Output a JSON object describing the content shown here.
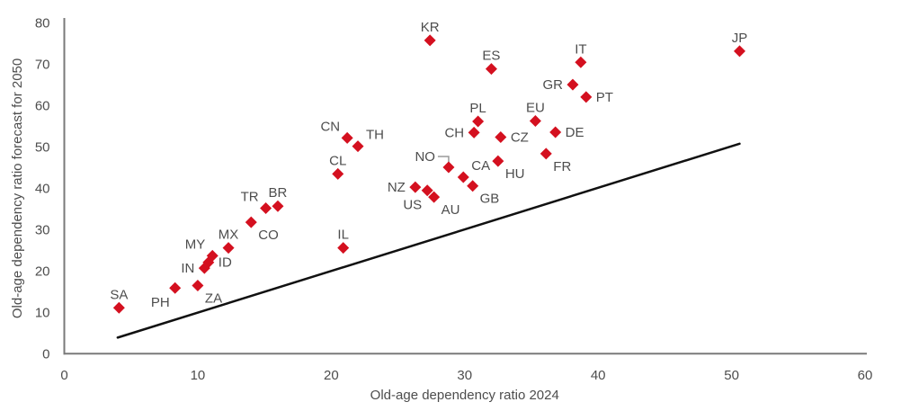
{
  "chart_data": {
    "type": "scatter",
    "title": "",
    "xlabel": "Old-age dependency ratio 2024",
    "ylabel": "Old-age dependency ratio forecast for 2050",
    "xlim": [
      0,
      60
    ],
    "ylim": [
      0,
      80
    ],
    "xticks": [
      0,
      10,
      20,
      30,
      40,
      50,
      60
    ],
    "yticks": [
      0,
      10,
      20,
      30,
      40,
      50,
      60,
      70,
      80
    ],
    "grid": false,
    "legend": false,
    "marker": "diamond",
    "marker_color": "#d4101f",
    "axis_color": "#7a7a7a",
    "text_color": "#4d4d4d",
    "line_color": "#111111",
    "reference_line": {
      "x1": 4.0,
      "y1": 3.9,
      "x2": 50.6,
      "y2": 50.8
    },
    "points": [
      {
        "code": "SA",
        "x": 4.1,
        "y": 11.1,
        "label_pos": "above"
      },
      {
        "code": "PH",
        "x": 8.3,
        "y": 15.9,
        "label_pos": "below-left"
      },
      {
        "code": "ZA",
        "x": 10.0,
        "y": 16.5,
        "label_pos": "below-right"
      },
      {
        "code": "IN",
        "x": 10.5,
        "y": 20.7,
        "label_pos": "left"
      },
      {
        "code": "ID",
        "x": 10.8,
        "y": 22.1,
        "label_pos": "right"
      },
      {
        "code": "MY",
        "x": 11.1,
        "y": 23.7,
        "label_pos": "above-left"
      },
      {
        "code": "MX",
        "x": 12.3,
        "y": 25.6,
        "label_pos": "above"
      },
      {
        "code": "CO",
        "x": 14.0,
        "y": 31.8,
        "label_pos": "below-right"
      },
      {
        "code": "TR",
        "x": 15.1,
        "y": 35.2,
        "label_pos": "above-left"
      },
      {
        "code": "BR",
        "x": 16.0,
        "y": 35.7,
        "label_pos": "above"
      },
      {
        "code": "IL",
        "x": 20.9,
        "y": 25.6,
        "label_pos": "above"
      },
      {
        "code": "CL",
        "x": 20.5,
        "y": 43.5,
        "label_pos": "above"
      },
      {
        "code": "CN",
        "x": 21.2,
        "y": 52.2,
        "label_pos": "above-left"
      },
      {
        "code": "TH",
        "x": 22.0,
        "y": 50.2,
        "label_pos": "above-right"
      },
      {
        "code": "NZ",
        "x": 26.3,
        "y": 40.3,
        "label_pos": "left"
      },
      {
        "code": "US",
        "x": 27.2,
        "y": 39.5,
        "label_pos": "below-left"
      },
      {
        "code": "AU",
        "x": 27.7,
        "y": 37.9,
        "label_pos": "below-right"
      },
      {
        "code": "KR",
        "x": 27.4,
        "y": 75.8,
        "label_pos": "above"
      },
      {
        "code": "NO",
        "x": 28.8,
        "y": 45.1,
        "label_pos": "callout-left",
        "connector": true
      },
      {
        "code": "CA",
        "x": 29.9,
        "y": 42.7,
        "label_pos": "above-right"
      },
      {
        "code": "GB",
        "x": 30.6,
        "y": 40.6,
        "label_pos": "below-right"
      },
      {
        "code": "CH",
        "x": 30.7,
        "y": 53.5,
        "label_pos": "left"
      },
      {
        "code": "PL",
        "x": 31.0,
        "y": 56.2,
        "label_pos": "above"
      },
      {
        "code": "ES",
        "x": 32.0,
        "y": 68.9,
        "label_pos": "above"
      },
      {
        "code": "CZ",
        "x": 32.7,
        "y": 52.4,
        "label_pos": "right"
      },
      {
        "code": "HU",
        "x": 32.5,
        "y": 46.6,
        "label_pos": "below-right"
      },
      {
        "code": "EU",
        "x": 35.3,
        "y": 56.3,
        "label_pos": "above"
      },
      {
        "code": "FR",
        "x": 36.1,
        "y": 48.4,
        "label_pos": "below-right"
      },
      {
        "code": "DE",
        "x": 36.8,
        "y": 53.6,
        "label_pos": "right"
      },
      {
        "code": "GR",
        "x": 38.1,
        "y": 65.1,
        "label_pos": "left"
      },
      {
        "code": "IT",
        "x": 38.7,
        "y": 70.5,
        "label_pos": "above"
      },
      {
        "code": "PT",
        "x": 39.1,
        "y": 62.1,
        "label_pos": "right"
      },
      {
        "code": "JP",
        "x": 50.6,
        "y": 73.2,
        "label_pos": "above"
      }
    ]
  }
}
